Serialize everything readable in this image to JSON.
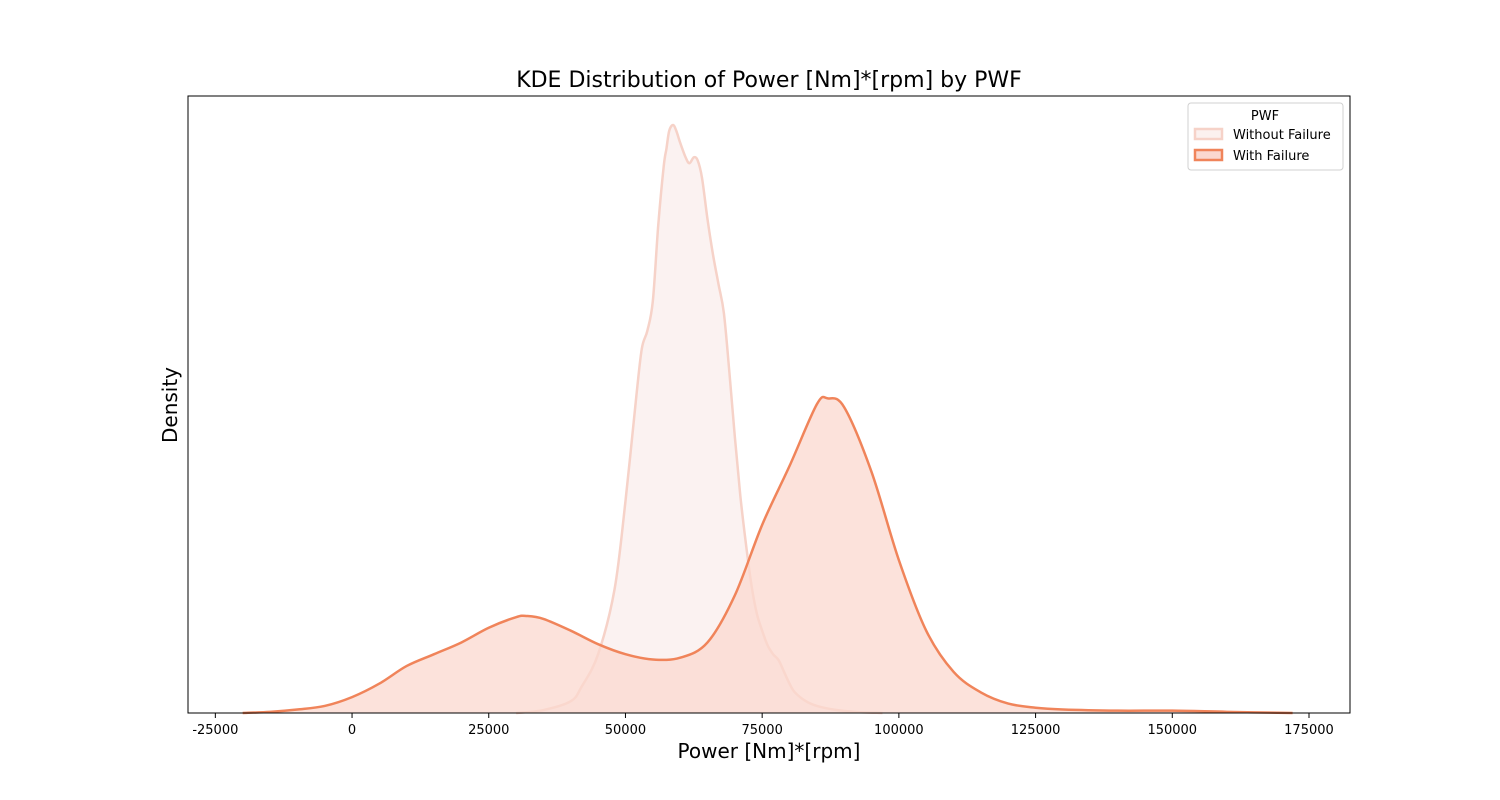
{
  "chart_data": {
    "type": "area",
    "title": "KDE Distribution of Power [Nm]*[rpm] by PWF",
    "xlabel": "Power [Nm]*[rpm]",
    "ylabel": "Density",
    "xlim": [
      -30000,
      182500
    ],
    "ylim": [
      0,
      1.0
    ],
    "xticks": [
      -25000,
      0,
      25000,
      50000,
      75000,
      100000,
      125000,
      150000,
      175000
    ],
    "yticks_shown": false,
    "grid": false,
    "legend": {
      "title": "PWF",
      "placement": "top-right"
    },
    "series": [
      {
        "name": "Without Failure",
        "line_color": "#f6d2c8",
        "fill_color": "#fbf1ef",
        "fill_opacity": 0.9,
        "line_width": 2.5,
        "points": [
          [
            30000,
            0.0
          ],
          [
            35000,
            0.005
          ],
          [
            40000,
            0.02
          ],
          [
            42000,
            0.045
          ],
          [
            45000,
            0.1
          ],
          [
            48000,
            0.21
          ],
          [
            50000,
            0.36
          ],
          [
            52000,
            0.54
          ],
          [
            53000,
            0.62
          ],
          [
            54000,
            0.65
          ],
          [
            55000,
            0.7
          ],
          [
            56000,
            0.83
          ],
          [
            57000,
            0.93
          ],
          [
            57500,
            0.96
          ],
          [
            58000,
            0.99
          ],
          [
            58700,
            1.0
          ],
          [
            59300,
            0.99
          ],
          [
            60000,
            0.97
          ],
          [
            61000,
            0.945
          ],
          [
            61700,
            0.935
          ],
          [
            62500,
            0.945
          ],
          [
            63200,
            0.94
          ],
          [
            64000,
            0.91
          ],
          [
            65000,
            0.84
          ],
          [
            66000,
            0.78
          ],
          [
            67000,
            0.73
          ],
          [
            68000,
            0.68
          ],
          [
            69000,
            0.58
          ],
          [
            70000,
            0.47
          ],
          [
            71000,
            0.37
          ],
          [
            72000,
            0.29
          ],
          [
            73000,
            0.22
          ],
          [
            74000,
            0.17
          ],
          [
            75000,
            0.14
          ],
          [
            76000,
            0.115
          ],
          [
            77000,
            0.1
          ],
          [
            78000,
            0.09
          ],
          [
            79000,
            0.07
          ],
          [
            80000,
            0.05
          ],
          [
            81000,
            0.035
          ],
          [
            83000,
            0.02
          ],
          [
            85000,
            0.012
          ],
          [
            88000,
            0.006
          ],
          [
            92000,
            0.002
          ],
          [
            97000,
            0.0
          ]
        ]
      },
      {
        "name": "With Failure",
        "line_color": "#f0845a",
        "fill_color": "#fbd8cf",
        "fill_opacity": 0.75,
        "line_width": 2.5,
        "points": [
          [
            -20000,
            0.0
          ],
          [
            -15000,
            0.002
          ],
          [
            -10000,
            0.006
          ],
          [
            -5000,
            0.012
          ],
          [
            0,
            0.027
          ],
          [
            5000,
            0.05
          ],
          [
            10000,
            0.08
          ],
          [
            15000,
            0.1
          ],
          [
            20000,
            0.12
          ],
          [
            25000,
            0.145
          ],
          [
            30000,
            0.163
          ],
          [
            32000,
            0.165
          ],
          [
            35000,
            0.16
          ],
          [
            40000,
            0.14
          ],
          [
            45000,
            0.117
          ],
          [
            50000,
            0.1
          ],
          [
            55000,
            0.091
          ],
          [
            60000,
            0.094
          ],
          [
            65000,
            0.12
          ],
          [
            70000,
            0.2
          ],
          [
            75000,
            0.32
          ],
          [
            80000,
            0.42
          ],
          [
            85000,
            0.525
          ],
          [
            87000,
            0.535
          ],
          [
            90000,
            0.52
          ],
          [
            95000,
            0.41
          ],
          [
            100000,
            0.26
          ],
          [
            105000,
            0.14
          ],
          [
            110000,
            0.07
          ],
          [
            115000,
            0.035
          ],
          [
            120000,
            0.016
          ],
          [
            125000,
            0.009
          ],
          [
            130000,
            0.006
          ],
          [
            140000,
            0.004
          ],
          [
            150000,
            0.004
          ],
          [
            160000,
            0.002
          ],
          [
            172000,
            0.0
          ]
        ]
      }
    ]
  }
}
